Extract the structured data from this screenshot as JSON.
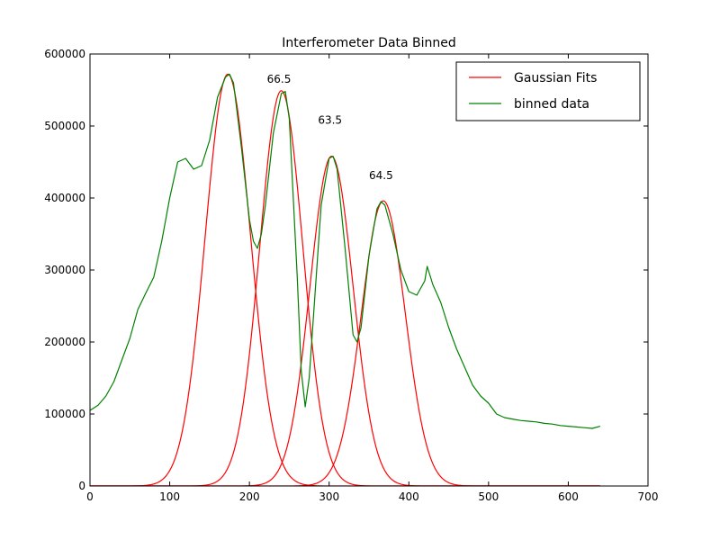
{
  "chart_data": {
    "type": "line",
    "title": "Interferometer Data Binned",
    "xlabel": "",
    "ylabel": "",
    "xlim": [
      0,
      700
    ],
    "ylim": [
      0,
      600000
    ],
    "xticks": [
      0,
      100,
      200,
      300,
      400,
      500,
      600,
      700
    ],
    "yticks": [
      0,
      100000,
      200000,
      300000,
      400000,
      500000,
      600000
    ],
    "grid": false,
    "legend_position": "top-right",
    "legend": [
      {
        "label": "Gaussian Fits",
        "color": "#ff0000"
      },
      {
        "label": "binned data",
        "color": "#008000"
      }
    ],
    "annotations": [
      {
        "text": "66.5",
        "x": 222,
        "y": 560000
      },
      {
        "text": "63.5",
        "x": 286,
        "y": 503000
      },
      {
        "text": "64.5",
        "x": 350,
        "y": 426000
      }
    ],
    "series": [
      {
        "name": "Gaussian Fits",
        "color": "#ff0000",
        "kind": "gaussians",
        "x_range": [
          0,
          640
        ],
        "peaks": [
          {
            "center": 173,
            "amplitude": 572000,
            "sigma": 28.5
          },
          {
            "center": 240,
            "amplitude": 549000,
            "sigma": 27
          },
          {
            "center": 303,
            "amplitude": 458000,
            "sigma": 27
          },
          {
            "center": 368,
            "amplitude": 396000,
            "sigma": 27.5
          }
        ]
      },
      {
        "name": "binned data",
        "color": "#008000",
        "kind": "line",
        "x": [
          0,
          10,
          20,
          30,
          40,
          50,
          60,
          70,
          80,
          90,
          100,
          110,
          120,
          130,
          140,
          150,
          160,
          170,
          175,
          180,
          190,
          200,
          205,
          210,
          215,
          220,
          230,
          240,
          245,
          250,
          260,
          265,
          270,
          275,
          280,
          290,
          300,
          305,
          310,
          320,
          330,
          335,
          340,
          350,
          360,
          365,
          370,
          380,
          390,
          400,
          410,
          420,
          423,
          430,
          440,
          450,
          460,
          470,
          480,
          490,
          500,
          510,
          520,
          530,
          540,
          550,
          560,
          570,
          580,
          590,
          600,
          610,
          620,
          630,
          640
        ],
        "y": [
          105000,
          112000,
          125000,
          145000,
          175000,
          205000,
          245000,
          268000,
          290000,
          340000,
          400000,
          450000,
          455000,
          440000,
          445000,
          480000,
          540000,
          568000,
          572000,
          560000,
          470000,
          370000,
          340000,
          330000,
          350000,
          390000,
          490000,
          545000,
          548000,
          510000,
          290000,
          160000,
          110000,
          150000,
          230000,
          390000,
          455000,
          458000,
          440000,
          330000,
          210000,
          200000,
          220000,
          320000,
          385000,
          395000,
          390000,
          350000,
          300000,
          270000,
          265000,
          285000,
          305000,
          280000,
          255000,
          220000,
          190000,
          165000,
          140000,
          125000,
          115000,
          100000,
          95000,
          93000,
          91000,
          90000,
          89000,
          87000,
          86000,
          84000,
          83000,
          82000,
          81000,
          80000,
          83000
        ]
      }
    ]
  }
}
